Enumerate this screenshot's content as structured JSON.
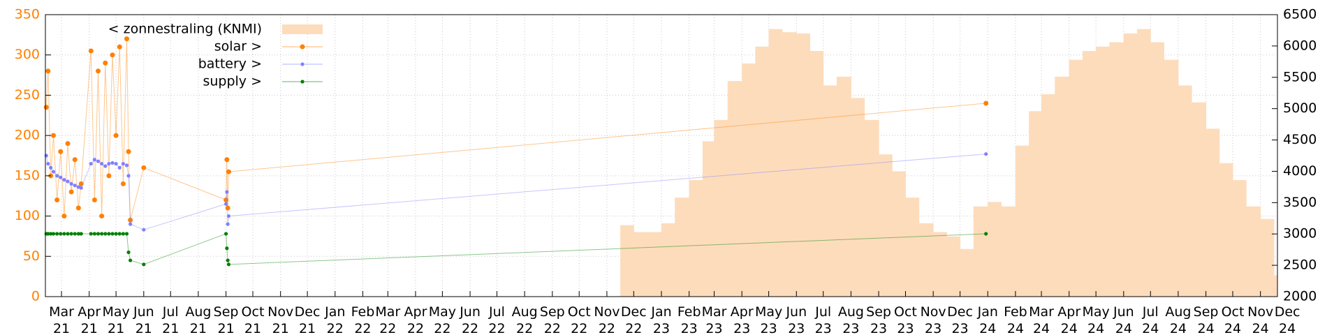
{
  "chart_data": {
    "type": "line",
    "xlim": [
      "2021-02-11",
      "2024-11-20"
    ],
    "ylim": [
      0,
      350
    ],
    "yticks": [
      0,
      50,
      100,
      150,
      200,
      250,
      300,
      350
    ],
    "y2lim": [
      2000,
      6500
    ],
    "y2ticks": [
      2000,
      2500,
      3000,
      3500,
      4000,
      4500,
      5000,
      5500,
      6000,
      6500
    ],
    "grid": true,
    "legend": "top-left",
    "xticks": [
      {
        "value": "2021-03-01",
        "label": "Mar 21"
      },
      {
        "value": "2021-04-01",
        "label": "Apr 21"
      },
      {
        "value": "2021-05-01",
        "label": "May 21"
      },
      {
        "value": "2021-06-01",
        "label": "Jun 21"
      },
      {
        "value": "2021-07-01",
        "label": "Jul 21"
      },
      {
        "value": "2021-08-01",
        "label": "Aug 21"
      },
      {
        "value": "2021-09-01",
        "label": "Sep 21"
      },
      {
        "value": "2021-10-01",
        "label": "Oct 21"
      },
      {
        "value": "2021-11-01",
        "label": "Nov 21"
      },
      {
        "value": "2021-12-01",
        "label": "Dec 21"
      },
      {
        "value": "2022-01-01",
        "label": "Jan 22"
      },
      {
        "value": "2022-02-01",
        "label": "Feb 22"
      },
      {
        "value": "2022-03-01",
        "label": "Mar 22"
      },
      {
        "value": "2022-04-01",
        "label": "Apr 22"
      },
      {
        "value": "2022-05-01",
        "label": "May 22"
      },
      {
        "value": "2022-06-01",
        "label": "Jun 22"
      },
      {
        "value": "2022-07-01",
        "label": "Jul 22"
      },
      {
        "value": "2022-08-01",
        "label": "Aug 22"
      },
      {
        "value": "2022-09-01",
        "label": "Sep 22"
      },
      {
        "value": "2022-10-01",
        "label": "Oct 22"
      },
      {
        "value": "2022-11-01",
        "label": "Nov 22"
      },
      {
        "value": "2022-12-01",
        "label": "Dec 22"
      },
      {
        "value": "2023-01-01",
        "label": "Jan 23"
      },
      {
        "value": "2023-02-01",
        "label": "Feb 23"
      },
      {
        "value": "2023-03-01",
        "label": "Mar 23"
      },
      {
        "value": "2023-04-01",
        "label": "Apr 23"
      },
      {
        "value": "2023-05-01",
        "label": "May 23"
      },
      {
        "value": "2023-06-01",
        "label": "Jun 23"
      },
      {
        "value": "2023-07-01",
        "label": "Jul 23"
      },
      {
        "value": "2023-08-01",
        "label": "Aug 23"
      },
      {
        "value": "2023-09-01",
        "label": "Sep 23"
      },
      {
        "value": "2023-10-01",
        "label": "Oct 23"
      },
      {
        "value": "2023-11-01",
        "label": "Nov 23"
      },
      {
        "value": "2023-12-01",
        "label": "Dec 23"
      },
      {
        "value": "2024-01-01",
        "label": "Jan 24"
      },
      {
        "value": "2024-02-01",
        "label": "Feb 24"
      },
      {
        "value": "2024-03-01",
        "label": "Mar 24"
      },
      {
        "value": "2024-04-01",
        "label": "Apr 24"
      },
      {
        "value": "2024-05-01",
        "label": "May 24"
      },
      {
        "value": "2024-06-01",
        "label": "Jun 24"
      },
      {
        "value": "2024-07-01",
        "label": "Jul 24"
      },
      {
        "value": "2024-08-01",
        "label": "Aug 24"
      },
      {
        "value": "2024-09-01",
        "label": "Sep 24"
      },
      {
        "value": "2024-10-01",
        "label": "Oct 24"
      },
      {
        "value": "2024-11-01",
        "label": "Nov 24"
      },
      {
        "value": "2024-12-01",
        "label": "Dec 24"
      }
    ],
    "series": [
      {
        "name": "< zonnestraling (KNMI)",
        "color": "#fddcbc",
        "style": "steps",
        "axis": "y2",
        "x": [
          "2022-11-16",
          "2022-12-01",
          "2022-12-16",
          "2023-01-01",
          "2023-01-16",
          "2023-02-01",
          "2023-02-16",
          "2023-03-01",
          "2023-03-16",
          "2023-04-01",
          "2023-04-16",
          "2023-05-01",
          "2023-05-16",
          "2023-06-01",
          "2023-06-16",
          "2023-07-01",
          "2023-07-16",
          "2023-08-01",
          "2023-08-16",
          "2023-09-01",
          "2023-09-16",
          "2023-10-01",
          "2023-10-16",
          "2023-11-01",
          "2023-11-16",
          "2023-12-01",
          "2023-12-16",
          "2024-01-01",
          "2024-01-16",
          "2024-02-01",
          "2024-02-16",
          "2024-03-01",
          "2024-03-16",
          "2024-04-01",
          "2024-04-16",
          "2024-05-01",
          "2024-05-16",
          "2024-06-01",
          "2024-06-16",
          "2024-07-01",
          "2024-07-16",
          "2024-08-01",
          "2024-08-16",
          "2024-09-01",
          "2024-09-16",
          "2024-10-01",
          "2024-10-16",
          "2024-11-01",
          "2024-11-16"
        ],
        "values": [
          3140,
          3030,
          3030,
          3170,
          3580,
          3860,
          4480,
          4820,
          5440,
          5720,
          5990,
          6270,
          6220,
          6200,
          5920,
          5370,
          5510,
          5170,
          4820,
          4270,
          4000,
          3580,
          3170,
          3030,
          2960,
          2760,
          3440,
          3510,
          3440,
          4410,
          4960,
          5230,
          5510,
          5780,
          5920,
          5990,
          6060,
          6200,
          6270,
          6060,
          5780,
          5370,
          5100,
          4680,
          4130,
          3860,
          3440,
          3240,
          2340
        ]
      },
      {
        "name": "solar >",
        "color": "#ff8000",
        "style": "linespoints",
        "x": [
          "2021-02-12",
          "2021-02-14",
          "2021-02-17",
          "2021-02-20",
          "2021-02-24",
          "2021-02-28",
          "2021-03-04",
          "2021-03-08",
          "2021-03-12",
          "2021-03-16",
          "2021-03-20",
          "2021-03-23",
          "2021-04-03",
          "2021-04-07",
          "2021-04-11",
          "2021-04-15",
          "2021-04-19",
          "2021-04-23",
          "2021-04-27",
          "2021-05-01",
          "2021-05-05",
          "2021-05-09",
          "2021-05-13",
          "2021-05-15",
          "2021-05-17",
          "2021-06-01",
          "2021-09-01",
          "2021-09-02",
          "2021-09-03",
          "2021-09-04",
          "2023-12-30"
        ],
        "values": [
          235,
          280,
          150,
          200,
          120,
          180,
          100,
          190,
          130,
          170,
          110,
          140,
          305,
          120,
          280,
          100,
          290,
          150,
          300,
          200,
          310,
          140,
          320,
          180,
          95,
          160,
          120,
          170,
          110,
          155,
          240
        ]
      },
      {
        "name": "battery >",
        "color": "#8080ff",
        "style": "linespoints",
        "x": [
          "2021-02-12",
          "2021-02-14",
          "2021-02-17",
          "2021-02-20",
          "2021-02-24",
          "2021-02-28",
          "2021-03-04",
          "2021-03-08",
          "2021-03-12",
          "2021-03-16",
          "2021-03-20",
          "2021-03-23",
          "2021-04-03",
          "2021-04-07",
          "2021-04-11",
          "2021-04-15",
          "2021-04-19",
          "2021-04-23",
          "2021-04-27",
          "2021-05-01",
          "2021-05-05",
          "2021-05-09",
          "2021-05-13",
          "2021-05-15",
          "2021-05-17",
          "2021-06-01",
          "2021-09-01",
          "2021-09-02",
          "2021-09-03",
          "2021-09-04",
          "2023-12-30"
        ],
        "values": [
          175,
          165,
          160,
          155,
          150,
          148,
          145,
          143,
          140,
          138,
          136,
          135,
          165,
          170,
          168,
          165,
          162,
          165,
          166,
          165,
          160,
          165,
          163,
          150,
          90,
          83,
          115,
          130,
          90,
          100,
          177
        ]
      },
      {
        "name": "supply >",
        "color": "#008000",
        "style": "linespoints",
        "x": [
          "2021-02-12",
          "2021-02-14",
          "2021-02-17",
          "2021-02-20",
          "2021-02-24",
          "2021-02-28",
          "2021-03-04",
          "2021-03-08",
          "2021-03-12",
          "2021-03-16",
          "2021-03-20",
          "2021-03-23",
          "2021-04-03",
          "2021-04-07",
          "2021-04-11",
          "2021-04-15",
          "2021-04-19",
          "2021-04-23",
          "2021-04-27",
          "2021-05-01",
          "2021-05-05",
          "2021-05-09",
          "2021-05-13",
          "2021-05-15",
          "2021-05-17",
          "2021-06-01",
          "2021-09-01",
          "2021-09-02",
          "2021-09-03",
          "2021-09-04",
          "2023-12-30"
        ],
        "values": [
          78,
          78,
          78,
          78,
          78,
          78,
          78,
          78,
          78,
          78,
          78,
          78,
          78,
          78,
          78,
          78,
          78,
          78,
          78,
          78,
          78,
          78,
          78,
          55,
          45,
          40,
          78,
          60,
          45,
          40,
          78
        ]
      }
    ]
  }
}
